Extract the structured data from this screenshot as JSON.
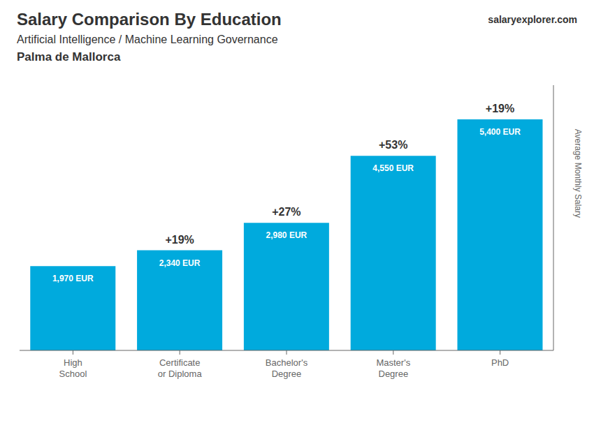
{
  "chart_data": {
    "type": "bar",
    "title": "Salary Comparison By Education",
    "subtitle": [
      "Artificial Intelligence / Machine Learning Governance",
      "Palma de Mallorca"
    ],
    "source": [
      "salary",
      "explorer.com"
    ],
    "ylabel": "Average Monthly Salary",
    "categories": [
      "High\nSchool",
      "Certificate\nor Diploma",
      "Bachelor's\nDegree",
      "Master's\nDegree",
      "PhD"
    ],
    "values": [
      1970,
      2340,
      2980,
      4550,
      5400
    ],
    "value_labels": [
      "1,970 EUR",
      "2,340 EUR",
      "2,980 EUR",
      "4,550 EUR",
      "5,400 EUR"
    ],
    "annotations": [
      "+19%",
      "+27%",
      "+53%",
      "+19%"
    ],
    "color": "#00AADD",
    "ylim": [
      0,
      6200
    ],
    "yticks": [],
    "data_labels": true,
    "tick_labels": "x",
    "grid": false
  }
}
